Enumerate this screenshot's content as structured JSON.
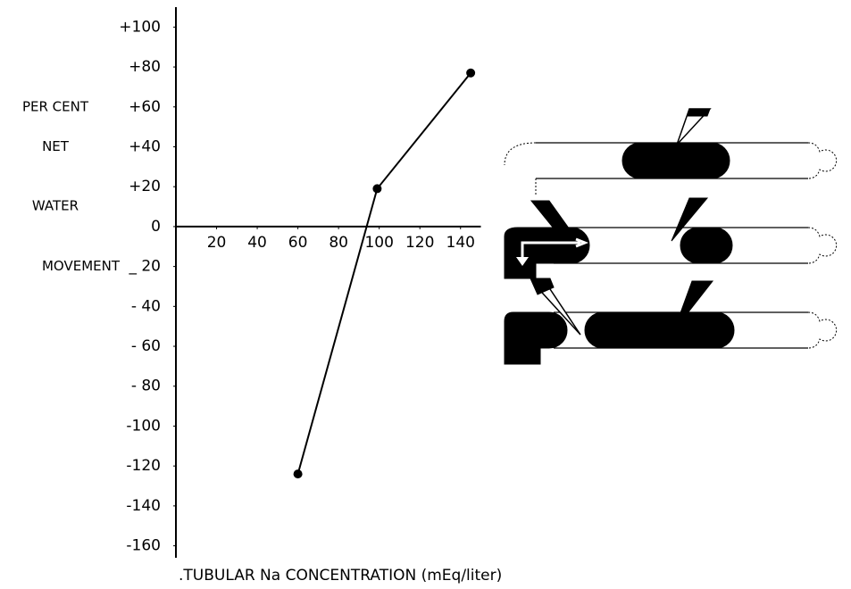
{
  "chart_data": {
    "type": "line",
    "ylabel": [
      "PER CENT",
      "NET",
      "WATER",
      "MOVEMENT"
    ],
    "xlabel": ".TUBULAR Na CONCENTRATION (mEq/liter)",
    "x": [
      60,
      99,
      145
    ],
    "values": [
      -124,
      19,
      77
    ],
    "color": "#000000",
    "xlim": [
      0,
      150
    ],
    "xticks": [
      20,
      40,
      60,
      80,
      100,
      120,
      140
    ],
    "ylim": [
      -166,
      110
    ],
    "yticks": [
      {
        "value": 100,
        "label": "+100"
      },
      {
        "value": 80,
        "label": "+80"
      },
      {
        "value": 60,
        "label": "+60"
      },
      {
        "value": 40,
        "label": "+40"
      },
      {
        "value": 20,
        "label": "+20"
      },
      0,
      {
        "value": -20,
        "label": "_ 20"
      },
      {
        "value": -40,
        "label": "- 40"
      },
      {
        "value": -60,
        "label": "- 60"
      },
      {
        "value": -80,
        "label": "- 80"
      },
      -100,
      -120,
      -140,
      -160
    ]
  }
}
